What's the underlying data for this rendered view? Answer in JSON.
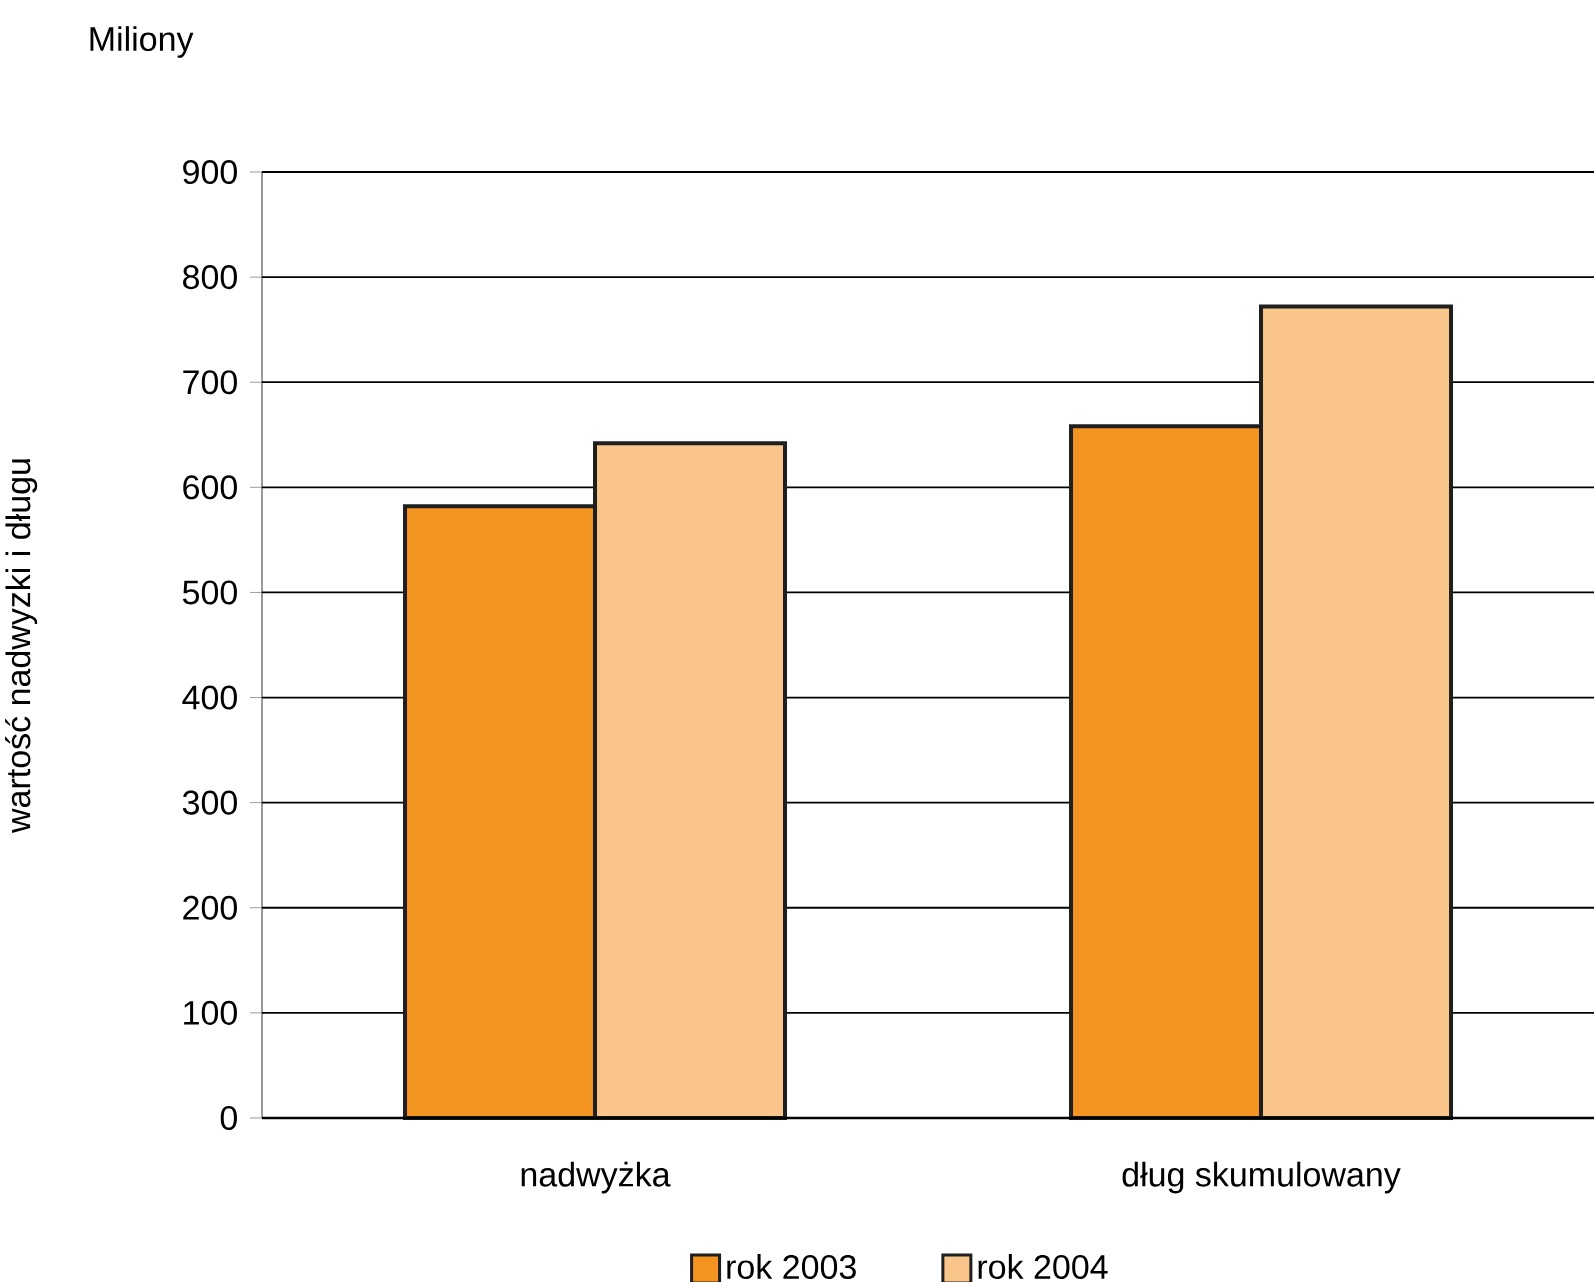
{
  "chart_data": {
    "type": "bar",
    "ylabel": "wartość nadwyzki i długu",
    "annotations": [
      "Miliony"
    ],
    "categories": [
      "nadwyżka",
      "dług skumulowany"
    ],
    "series": [
      {
        "name": "rok 2003",
        "color": "#f39320",
        "values": [
          582,
          658
        ]
      },
      {
        "name": "rok 2004",
        "color": "#f9c58a",
        "values": [
          642,
          772
        ]
      }
    ],
    "ylim": [
      0,
      900
    ],
    "yticks": [
      0,
      100,
      200,
      300,
      400,
      500,
      600,
      700,
      800,
      900
    ],
    "grid": "y",
    "legend": "bottom"
  }
}
